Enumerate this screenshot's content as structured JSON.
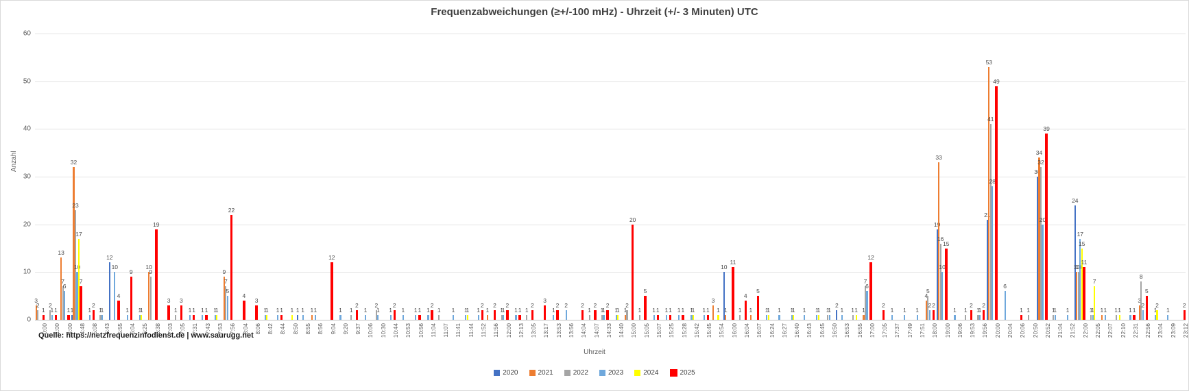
{
  "title": "Frequenzabweichungen (≥+/-100 mHz) - Uhrzeit (+/- 3  Minuten) UTC",
  "y_axis": {
    "title": "Anzahl",
    "ticks": [
      0,
      10,
      20,
      30,
      40,
      50,
      60
    ]
  },
  "x_axis": {
    "title": "Uhrzeit"
  },
  "source": "Quelle: https://netzfrequenzinfodienst.de | www.saurugg.net",
  "chart_data": {
    "type": "bar",
    "title": "Frequenzabweichungen (≥+/-100 mHz) - Uhrzeit (+/- 3  Minuten) UTC",
    "xlabel": "Uhrzeit",
    "ylabel": "Anzahl",
    "ylim": [
      0,
      60
    ],
    "grid": true,
    "legend_position": "bottom",
    "categories": [
      "0:00",
      "1:00",
      "4:00",
      "4:48",
      "5:08",
      "5:43",
      "5:55",
      "6:04",
      "6:25",
      "6:38",
      "7:03",
      "7:05",
      "7:31",
      "7:43",
      "7:53",
      "7:56",
      "8:04",
      "8:06",
      "8:42",
      "8:44",
      "8:50",
      "8:55",
      "8:56",
      "9:04",
      "9:20",
      "9:37",
      "10:06",
      "10:30",
      "10:44",
      "10:53",
      "10:56",
      "11:04",
      "11:07",
      "11:41",
      "11:44",
      "11:52",
      "11:56",
      "12:00",
      "12:13",
      "13:05",
      "13:17",
      "13:53",
      "13:56",
      "14:04",
      "14:07",
      "14:33",
      "14:40",
      "15:00",
      "15:05",
      "15:07",
      "15:25",
      "15:28",
      "15:42",
      "15:45",
      "15:54",
      "16:00",
      "16:04",
      "16:07",
      "16:24",
      "16:27",
      "16:40",
      "16:43",
      "16:45",
      "16:50",
      "16:53",
      "16:55",
      "17:00",
      "17:05",
      "17:37",
      "17:49",
      "17:51",
      "18:00",
      "19:00",
      "19:06",
      "19:53",
      "19:56",
      "20:00",
      "20:04",
      "20:06",
      "20:50",
      "20:52",
      "21:04",
      "21:52",
      "22:00",
      "22:05",
      "22:07",
      "22:10",
      "22:31",
      "22:56",
      "23:04",
      "23:09",
      "23:12"
    ],
    "series": [
      {
        "name": "2020",
        "color": "#4472C4",
        "values": [
          0,
          0,
          0,
          1,
          0,
          0,
          12,
          0,
          0,
          0,
          0,
          0,
          0,
          0,
          0,
          0,
          0,
          0,
          0,
          0,
          0,
          1,
          0,
          0,
          0,
          0,
          0,
          0,
          0,
          0,
          0,
          0,
          0,
          0,
          0,
          0,
          0,
          0,
          0,
          0,
          0,
          0,
          0,
          0,
          0,
          0,
          0,
          0,
          0,
          0,
          0,
          0,
          0,
          0,
          0,
          10,
          0,
          0,
          0,
          0,
          0,
          0,
          0,
          0,
          2,
          0,
          0,
          0,
          0,
          0,
          0,
          0,
          19,
          0,
          0,
          0,
          21,
          0,
          0,
          0,
          30,
          0,
          0,
          24,
          0,
          0,
          0,
          0,
          0,
          0,
          0,
          0
        ]
      },
      {
        "name": "2021",
        "color": "#ED7D31",
        "values": [
          3,
          0,
          13,
          32,
          0,
          0,
          0,
          0,
          0,
          10,
          0,
          0,
          0,
          0,
          0,
          9,
          0,
          0,
          0,
          0,
          0,
          0,
          1,
          0,
          0,
          0,
          0,
          0,
          0,
          0,
          0,
          0,
          0,
          0,
          0,
          0,
          1,
          0,
          0,
          0,
          0,
          0,
          0,
          0,
          0,
          0,
          0,
          1,
          0,
          0,
          0,
          0,
          0,
          0,
          3,
          1,
          0,
          1,
          0,
          0,
          0,
          0,
          0,
          0,
          0,
          0,
          1,
          0,
          0,
          0,
          0,
          4,
          33,
          0,
          0,
          0,
          53,
          0,
          0,
          0,
          34,
          0,
          0,
          10,
          0,
          1,
          0,
          0,
          3,
          0,
          0,
          0
        ]
      },
      {
        "name": "2022",
        "color": "#A5A5A5",
        "values": [
          2,
          2,
          7,
          23,
          0,
          1,
          0,
          0,
          0,
          9,
          0,
          1,
          0,
          0,
          0,
          7,
          0,
          0,
          0,
          0,
          0,
          0,
          0,
          0,
          0,
          1,
          0,
          2,
          0,
          0,
          0,
          0,
          1,
          0,
          0,
          0,
          0,
          1,
          0,
          1,
          0,
          0,
          0,
          0,
          1,
          1,
          0,
          2,
          1,
          0,
          0,
          0,
          0,
          0,
          0,
          0,
          1,
          0,
          0,
          0,
          0,
          0,
          0,
          1,
          0,
          1,
          7,
          0,
          0,
          0,
          0,
          5,
          16,
          0,
          1,
          1,
          41,
          0,
          0,
          1,
          32,
          1,
          0,
          10,
          1,
          0,
          1,
          0,
          8,
          0,
          0,
          0
        ]
      },
      {
        "name": "2023",
        "color": "#6FA8DC",
        "values": [
          0,
          1,
          6,
          10,
          1,
          1,
          10,
          1,
          1,
          0,
          0,
          0,
          1,
          1,
          1,
          5,
          0,
          0,
          1,
          1,
          0,
          1,
          1,
          0,
          1,
          0,
          1,
          1,
          1,
          1,
          1,
          1,
          0,
          1,
          1,
          1,
          0,
          1,
          1,
          0,
          0,
          1,
          2,
          0,
          0,
          1,
          1,
          0,
          0,
          1,
          1,
          1,
          1,
          1,
          0,
          0,
          0,
          0,
          1,
          1,
          1,
          1,
          1,
          1,
          1,
          0,
          6,
          0,
          1,
          1,
          1,
          2,
          10,
          1,
          0,
          1,
          28,
          6,
          0,
          0,
          20,
          1,
          1,
          17,
          1,
          1,
          0,
          1,
          2,
          1,
          1,
          0
        ]
      },
      {
        "name": "2024",
        "color": "#FFFF00",
        "values": [
          0,
          0,
          0,
          17,
          0,
          0,
          0,
          0,
          1,
          0,
          0,
          0,
          0,
          0,
          1,
          0,
          0,
          0,
          1,
          0,
          1,
          0,
          0,
          0,
          0,
          0,
          0,
          0,
          0,
          0,
          0,
          0,
          0,
          0,
          1,
          0,
          0,
          0,
          0,
          0,
          0,
          0,
          0,
          0,
          0,
          0,
          1,
          0,
          0,
          0,
          0,
          0,
          1,
          0,
          1,
          0,
          0,
          0,
          1,
          0,
          1,
          0,
          1,
          0,
          0,
          1,
          0,
          0,
          0,
          0,
          0,
          0,
          0,
          0,
          0,
          0,
          0,
          0,
          0,
          0,
          0,
          0,
          0,
          15,
          7,
          0,
          1,
          0,
          0,
          2,
          0,
          0
        ]
      },
      {
        "name": "2025",
        "color": "#FF0000",
        "values": [
          1,
          1,
          1,
          7,
          2,
          0,
          4,
          9,
          0,
          19,
          3,
          3,
          1,
          1,
          0,
          22,
          4,
          3,
          0,
          1,
          0,
          0,
          0,
          12,
          0,
          2,
          0,
          0,
          2,
          0,
          1,
          2,
          0,
          0,
          0,
          2,
          2,
          2,
          1,
          2,
          3,
          2,
          0,
          2,
          2,
          2,
          0,
          20,
          5,
          1,
          1,
          1,
          0,
          1,
          0,
          11,
          4,
          5,
          0,
          0,
          0,
          0,
          0,
          0,
          0,
          0,
          12,
          2,
          0,
          0,
          0,
          2,
          15,
          0,
          2,
          2,
          49,
          0,
          1,
          0,
          39,
          0,
          0,
          11,
          0,
          0,
          0,
          1,
          5,
          0,
          0,
          2
        ]
      }
    ]
  }
}
